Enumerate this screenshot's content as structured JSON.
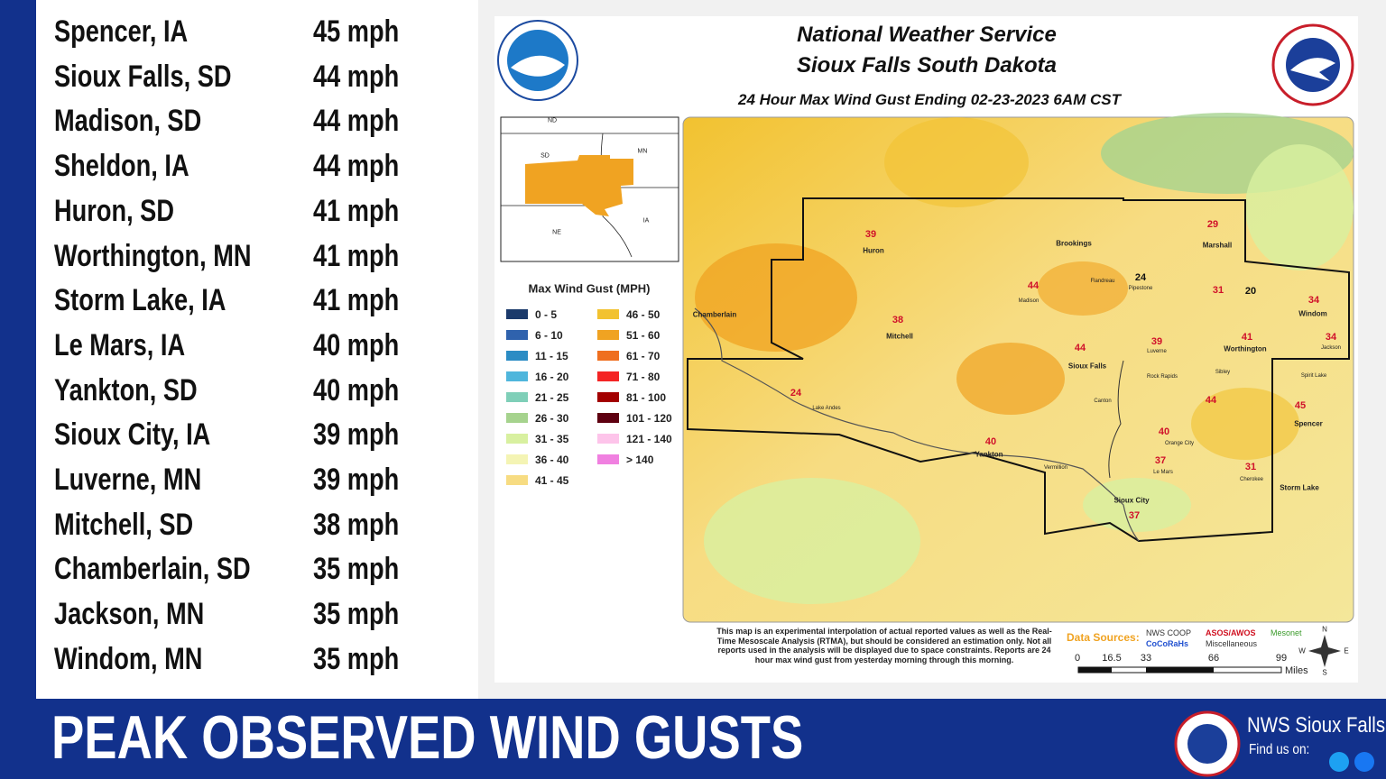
{
  "gust_list": {
    "rows": [
      [
        "Spencer, IA",
        "45 mph"
      ],
      [
        "Sioux Falls, SD",
        "44 mph"
      ],
      [
        "Madison, SD",
        "44 mph"
      ],
      [
        "Sheldon, IA",
        "44 mph"
      ],
      [
        "Huron, SD",
        "41 mph"
      ],
      [
        "Worthington, MN",
        "41 mph"
      ],
      [
        "Storm Lake, IA",
        "41 mph"
      ],
      [
        "Le Mars, IA",
        "40 mph"
      ],
      [
        "Yankton, SD",
        "40 mph"
      ],
      [
        "Sioux City, IA",
        "39 mph"
      ],
      [
        "Luverne, MN",
        "39 mph"
      ],
      [
        "Mitchell, SD",
        "38 mph"
      ],
      [
        "Chamberlain, SD",
        "35 mph"
      ],
      [
        "Jackson, MN",
        "35 mph"
      ],
      [
        "Windom, MN",
        "35 mph"
      ]
    ]
  },
  "map": {
    "header": {
      "agency": "National Weather Service",
      "office": "Sioux Falls South Dakota",
      "title": "24 Hour Max Wind Gust Ending 02-23-2023 6AM CST"
    },
    "inset_labels": [
      "ND",
      "SD",
      "MN",
      "NE",
      "IA"
    ],
    "legend": {
      "title": "Max Wind Gust (MPH)",
      "items": [
        {
          "label": "0 - 5",
          "color": "#1b3a6b"
        },
        {
          "label": "6 - 10",
          "color": "#2f62ad"
        },
        {
          "label": "11 - 15",
          "color": "#2b8cc4"
        },
        {
          "label": "16 - 20",
          "color": "#4fb6dc"
        },
        {
          "label": "21 - 25",
          "color": "#7fcfb8"
        },
        {
          "label": "26 - 30",
          "color": "#a6d38e"
        },
        {
          "label": "31 - 35",
          "color": "#d8f0a0"
        },
        {
          "label": "36 - 40",
          "color": "#f4f4b4"
        },
        {
          "label": "41 - 45",
          "color": "#f7dc82"
        },
        {
          "label": "46 - 50",
          "color": "#f2c230"
        },
        {
          "label": "51 - 60",
          "color": "#f0a322"
        },
        {
          "label": "61 - 70",
          "color": "#ef6f1f"
        },
        {
          "label": "71 - 80",
          "color": "#f42424"
        },
        {
          "label": "81 - 100",
          "color": "#a30000"
        },
        {
          "label": "101 - 120",
          "color": "#5e0010"
        },
        {
          "label": "121 - 140",
          "color": "#fdc4ea"
        },
        {
          "label": "> 140",
          "color": "#f080e0"
        }
      ]
    },
    "gust_values": [
      "39",
      "29",
      "24",
      "44",
      "31",
      "20",
      "34",
      "38",
      "44",
      "39",
      "41",
      "34",
      "24",
      "44",
      "45",
      "40",
      "40",
      "37",
      "31",
      "37"
    ],
    "places": [
      "Huron",
      "Marshall",
      "Brookings",
      "Pipestone",
      "Flandreau",
      "Madison",
      "Windom",
      "Chamberlain",
      "Mitchell",
      "Sioux Falls",
      "Luverne",
      "Worthington",
      "Jackson",
      "Rock Rapids",
      "Sibley",
      "Spirit Lake",
      "Canton",
      "Lake Andes",
      "Spencer",
      "Orange City",
      "Yankton",
      "Vermillion",
      "Le Mars",
      "Cherokee",
      "Storm Lake",
      "Sioux City"
    ],
    "disclaimer": "This map is an experimental interpolation of actual reported values as well as the Real-Time Mesoscale Analysis (RTMA), but should be considered an estimation only. Not all reports used in the analysis will be displayed due to space constraints. Reports are 24 hour max wind gust from yesterday morning through this morning.",
    "sources": {
      "title": "Data Sources:",
      "items": [
        {
          "label": "NWS COOP",
          "color": "#333333"
        },
        {
          "label": "ASOS/AWOS",
          "color": "#d01020"
        },
        {
          "label": "Mesonet",
          "color": "#3a9a2a"
        },
        {
          "label": "CoCoRaHs",
          "color": "#2050d0"
        },
        {
          "label": "Miscellaneous",
          "color": "#333333"
        }
      ]
    },
    "scale": {
      "ticks": [
        "0",
        "16.5",
        "33",
        "66",
        "99"
      ],
      "unit": "Miles"
    },
    "compass": [
      "N",
      "E",
      "S",
      "W"
    ]
  },
  "footer": {
    "title": "PEAK OBSERVED WIND GUSTS",
    "office": "NWS Sioux Falls",
    "find": "Find us on:"
  }
}
